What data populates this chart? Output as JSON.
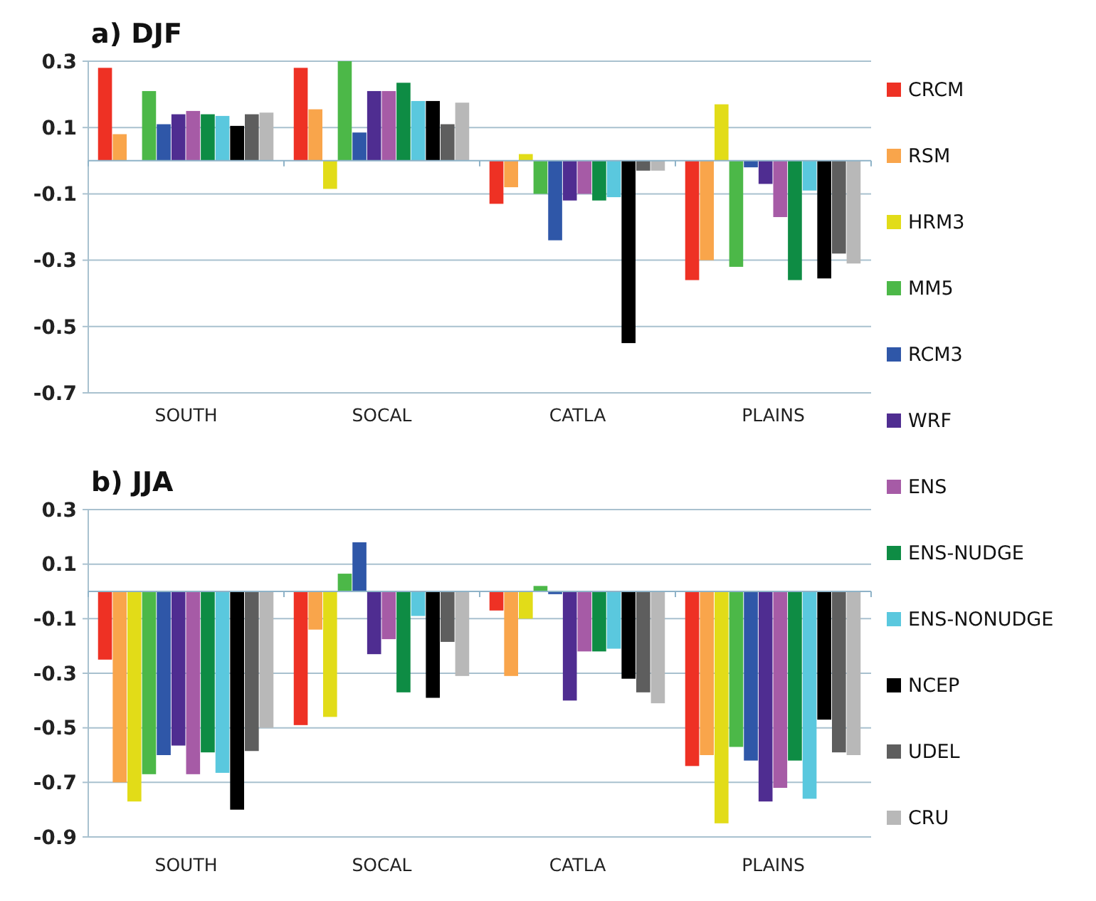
{
  "chart_data": [
    {
      "type": "bar",
      "title": "a) DJF",
      "categories": [
        "SOUTH",
        "SOCAL",
        "CATLA",
        "PLAINS"
      ],
      "ylim": [
        -0.7,
        0.3
      ],
      "yticks": [
        0.3,
        0.1,
        -0.1,
        -0.3,
        -0.5,
        -0.7
      ],
      "grid": "y",
      "legend": "right",
      "ref_lines": [
        {
          "axis": "y",
          "value": 0,
          "color": "#8fb3c8"
        }
      ],
      "series": [
        {
          "name": "CRCM",
          "color": "#ee3124",
          "values": [
            0.28,
            0.28,
            -0.13,
            -0.36
          ]
        },
        {
          "name": "RSM",
          "color": "#f9a54b",
          "values": [
            0.08,
            0.155,
            -0.08,
            -0.3
          ]
        },
        {
          "name": "HRM3",
          "color": "#e2dc18",
          "values": [
            0,
            -0.085,
            0.02,
            0.17
          ]
        },
        {
          "name": "MM5",
          "color": "#4cb848",
          "values": [
            0.21,
            0.3,
            -0.1,
            -0.32
          ]
        },
        {
          "name": "RCM3",
          "color": "#2f57a8",
          "values": [
            0.11,
            0.085,
            -0.24,
            -0.02
          ]
        },
        {
          "name": "WRF",
          "color": "#4f2d91",
          "values": [
            0.14,
            0.21,
            -0.12,
            -0.07
          ]
        },
        {
          "name": "ENS",
          "color": "#a65ba6",
          "values": [
            0.15,
            0.21,
            -0.1,
            -0.17
          ]
        },
        {
          "name": "ENS-NUDGE",
          "color": "#0e8c44",
          "values": [
            0.14,
            0.235,
            -0.12,
            -0.36
          ]
        },
        {
          "name": "ENS-NONUDGE",
          "color": "#5ac8de",
          "values": [
            0.135,
            0.18,
            -0.11,
            -0.09
          ]
        },
        {
          "name": "NCEP",
          "color": "#000000",
          "values": [
            0.105,
            0.18,
            -0.55,
            -0.355
          ]
        },
        {
          "name": "UDEL",
          "color": "#5e5e5e",
          "values": [
            0.14,
            0.11,
            -0.03,
            -0.28
          ]
        },
        {
          "name": "CRU",
          "color": "#b8b8b8",
          "values": [
            0.145,
            0.175,
            -0.03,
            -0.31
          ]
        }
      ]
    },
    {
      "type": "bar",
      "title": "b) JJA",
      "categories": [
        "SOUTH",
        "SOCAL",
        "CATLA",
        "PLAINS"
      ],
      "ylim": [
        -0.9,
        0.3
      ],
      "yticks": [
        0.3,
        0.1,
        -0.1,
        -0.3,
        -0.5,
        -0.7,
        -0.9
      ],
      "grid": "y",
      "ref_lines": [
        {
          "axis": "y",
          "value": 0,
          "color": "#8fb3c8"
        }
      ],
      "series": [
        {
          "color": "#ee3124",
          "values": [
            -0.25,
            -0.49,
            -0.07,
            -0.64
          ]
        },
        {
          "color": "#f9a54b",
          "values": [
            -0.7,
            -0.14,
            -0.31,
            -0.6
          ]
        },
        {
          "color": "#e2dc18",
          "values": [
            -0.77,
            -0.46,
            -0.1,
            -0.85
          ]
        },
        {
          "color": "#4cb848",
          "values": [
            -0.67,
            0.065,
            0.02,
            -0.57
          ]
        },
        {
          "color": "#2f57a8",
          "values": [
            -0.6,
            0.18,
            -0.01,
            -0.62
          ]
        },
        {
          "color": "#4f2d91",
          "values": [
            -0.565,
            -0.23,
            -0.4,
            -0.77
          ]
        },
        {
          "color": "#a65ba6",
          "values": [
            -0.67,
            -0.175,
            -0.22,
            -0.72
          ]
        },
        {
          "color": "#0e8c44",
          "values": [
            -0.59,
            -0.37,
            -0.22,
            -0.62
          ]
        },
        {
          "color": "#5ac8de",
          "values": [
            -0.665,
            -0.09,
            -0.21,
            -0.76
          ]
        },
        {
          "color": "#000000",
          "values": [
            -0.8,
            -0.39,
            -0.32,
            -0.47
          ]
        },
        {
          "color": "#5e5e5e",
          "values": [
            -0.585,
            -0.185,
            -0.37,
            -0.59
          ]
        },
        {
          "color": "#b8b8b8",
          "values": [
            -0.5,
            -0.31,
            -0.41,
            -0.6
          ]
        }
      ]
    }
  ]
}
